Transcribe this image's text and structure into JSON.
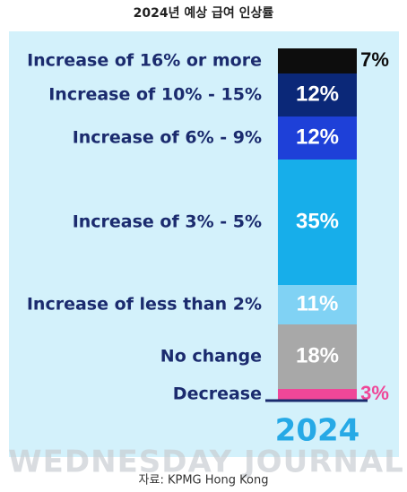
{
  "chart_data": {
    "type": "stacked_bar",
    "title": "2024년 예상 급여 인상률",
    "categories": [
      "2024"
    ],
    "series": [
      {
        "name": "Increase of 16% or more",
        "color": "#0d0d0d",
        "values": [
          7
        ],
        "value_labels": [
          "7%"
        ]
      },
      {
        "name": "Increase of 10% - 15%",
        "color": "#0b2878",
        "values": [
          12
        ],
        "value_labels": [
          "12%"
        ]
      },
      {
        "name": "Increase of 6% - 9%",
        "color": "#1e40d8",
        "values": [
          12
        ],
        "value_labels": [
          "12%"
        ]
      },
      {
        "name": "Increase of 3% - 5%",
        "color": "#17aeea",
        "values": [
          35
        ],
        "value_labels": [
          "35%"
        ]
      },
      {
        "name": "Increase of less than 2%",
        "color": "#80d2f4",
        "values": [
          11
        ],
        "value_labels": [
          "11%"
        ]
      },
      {
        "name": "No change",
        "color": "#a8a8a8",
        "values": [
          18
        ],
        "value_labels": [
          "18%"
        ]
      },
      {
        "name": "Decrease",
        "color": "#ef4798",
        "values": [
          3
        ],
        "value_labels": [
          "3%"
        ]
      }
    ],
    "watermark": "WEDNESDAY JOURNAL",
    "source": "자료: KPMG Hong Kong"
  }
}
